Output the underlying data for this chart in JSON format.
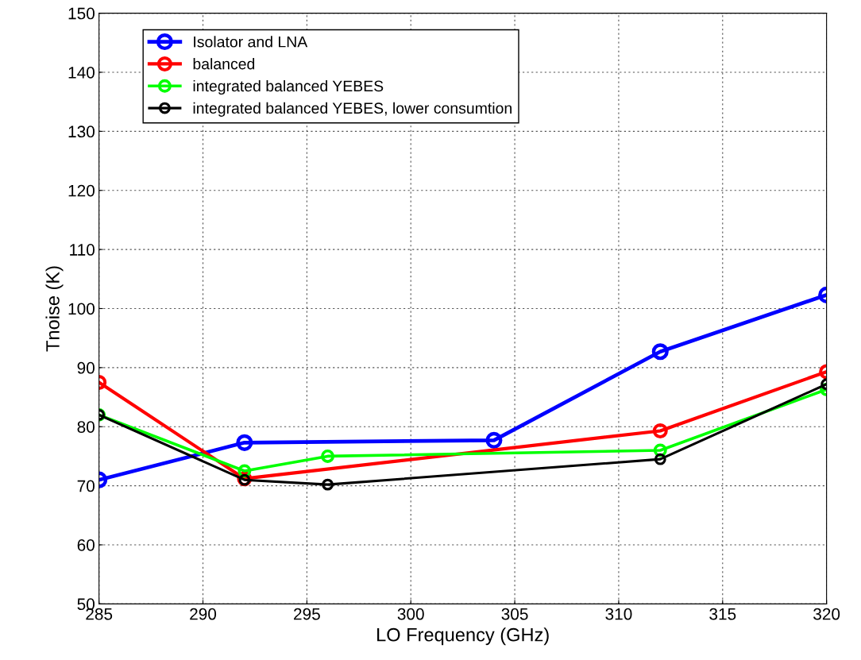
{
  "chart_data": {
    "type": "line",
    "xlabel": "LO Frequency (GHz)",
    "ylabel": "Tnoise (K)",
    "xlim": [
      285,
      320
    ],
    "xticks": [
      285,
      290,
      295,
      300,
      305,
      310,
      315,
      320
    ],
    "ylim": [
      50,
      150
    ],
    "yticks": [
      50,
      60,
      70,
      80,
      90,
      100,
      110,
      120,
      130,
      140,
      150
    ],
    "grid": true,
    "legend": "top left",
    "marker": "circle",
    "line_style": "solid",
    "series": [
      {
        "name": "Isolator and LNA",
        "color": "#0000ff",
        "x": [
          285,
          292,
          304,
          312,
          320
        ],
        "values": [
          71,
          77.3,
          77.7,
          92.7,
          102.3
        ]
      },
      {
        "name": "balanced",
        "color": "#ff0000",
        "x": [
          285,
          292,
          312,
          320
        ],
        "values": [
          87.5,
          71.2,
          79.3,
          89.3
        ]
      },
      {
        "name": "integrated balanced YEBES",
        "color": "#00ff00",
        "x": [
          285,
          292,
          296,
          312,
          320
        ],
        "values": [
          82,
          72.5,
          75,
          76,
          86.3
        ]
      },
      {
        "name": "integrated balanced YEBES, lower consumtion",
        "color": "#000000",
        "x": [
          285,
          292,
          296,
          312,
          320
        ],
        "values": [
          82,
          71,
          70.2,
          74.5,
          87.2
        ]
      }
    ]
  }
}
